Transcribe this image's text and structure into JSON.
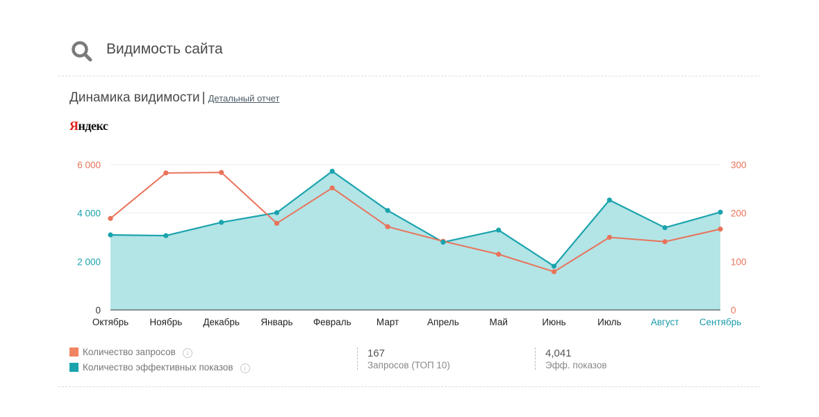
{
  "header": {
    "title": "Видимость сайта",
    "icon": "search-icon"
  },
  "section": {
    "title": "Динамика видимости",
    "separator": "|",
    "link_label": "Детальный отчет"
  },
  "logo": {
    "first": "Я",
    "rest": "ндекс"
  },
  "chart_data": {
    "type": "area",
    "categories": [
      "Октябрь",
      "Ноябрь",
      "Декабрь",
      "Январь",
      "Февраль",
      "Март",
      "Апрель",
      "Май",
      "Июнь",
      "Июль",
      "Август",
      "Сентябрь"
    ],
    "highlighted_categories": [
      "Август",
      "Сентябрь"
    ],
    "left_axis": {
      "ticks": [
        "0",
        "2 000",
        "4 000",
        "6 000"
      ],
      "tick_values": [
        0,
        2000,
        4000,
        6000
      ],
      "ylim": [
        0,
        6000
      ],
      "color": "#1aa3ad",
      "top_tick_color": "#e8735a"
    },
    "right_axis": {
      "ticks": [
        "0",
        "100",
        "200",
        "300"
      ],
      "tick_values": [
        0,
        100,
        200,
        300
      ],
      "ylim": [
        0,
        300
      ],
      "color": "#e8735a"
    },
    "grid": true,
    "series": [
      {
        "name": "Количество эффективных показов",
        "axis": "left",
        "kind": "area",
        "color": "#1aa3ad",
        "fill": "#b3e4e6",
        "values": [
          3100,
          3070,
          3620,
          4020,
          5730,
          4110,
          2800,
          3300,
          1810,
          4540,
          3400,
          4041
        ]
      },
      {
        "name": "Количество запросов",
        "axis": "right",
        "kind": "line",
        "color": "#e8735a",
        "values": [
          189,
          283,
          284,
          179,
          252,
          172,
          142,
          115,
          79,
          150,
          141,
          167
        ]
      }
    ]
  },
  "legend": [
    {
      "label": "Количество запросов",
      "color": "#f08461"
    },
    {
      "label": "Количество эффективных показов",
      "color": "#1aa3ad"
    }
  ],
  "info_glyph": "i",
  "stats": [
    {
      "value": "167",
      "label": "Запросов (ТОП 10)"
    },
    {
      "value": "4,041",
      "label": "Эфф. показов"
    }
  ]
}
